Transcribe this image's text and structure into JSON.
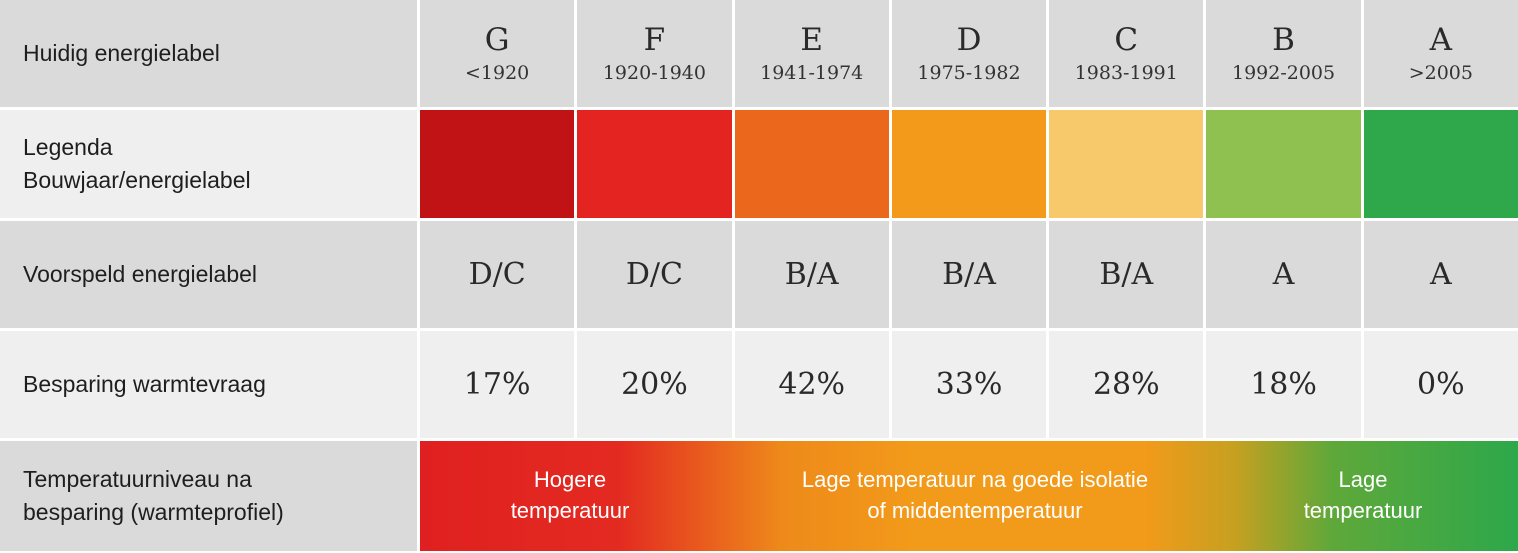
{
  "rows": {
    "huidig": "Huidig energielabel",
    "legenda_line1": "Legenda",
    "legenda_line2": "Bouwjaar/energielabel",
    "voorspeld": "Voorspeld energielabel",
    "besparing": "Besparing warmtevraag",
    "temp_line1": "Temperatuurniveau na",
    "temp_line2": "besparing (warmteprofiel)"
  },
  "labels": [
    {
      "letter": "G",
      "year": "<1920",
      "color": "#c11316",
      "predicted": "D/C",
      "saving": "17%"
    },
    {
      "letter": "F",
      "year": "1920-1940",
      "color": "#e32420",
      "predicted": "D/C",
      "saving": "20%"
    },
    {
      "letter": "E",
      "year": "1941-1974",
      "color": "#eb671c",
      "predicted": "B/A",
      "saving": "42%"
    },
    {
      "letter": "D",
      "year": "1975-1982",
      "color": "#f39a1b",
      "predicted": "B/A",
      "saving": "33%"
    },
    {
      "letter": "C",
      "year": "1983-1991",
      "color": "#f8c96b",
      "predicted": "B/A",
      "saving": "28%"
    },
    {
      "letter": "B",
      "year": "1992-2005",
      "color": "#8fc150",
      "predicted": "A",
      "saving": "18%"
    },
    {
      "letter": "A",
      "year": ">2005",
      "color": "#2ea84a",
      "predicted": "A",
      "saving": "0%"
    }
  ],
  "temperature": {
    "high_line1": "Hogere",
    "high_line2": "temperatuur",
    "mid_line1": "Lage temperatuur na goede isolatie",
    "mid_line2": "of middentemperatuur",
    "low_line1": "Lage",
    "low_line2": "temperatuur"
  }
}
